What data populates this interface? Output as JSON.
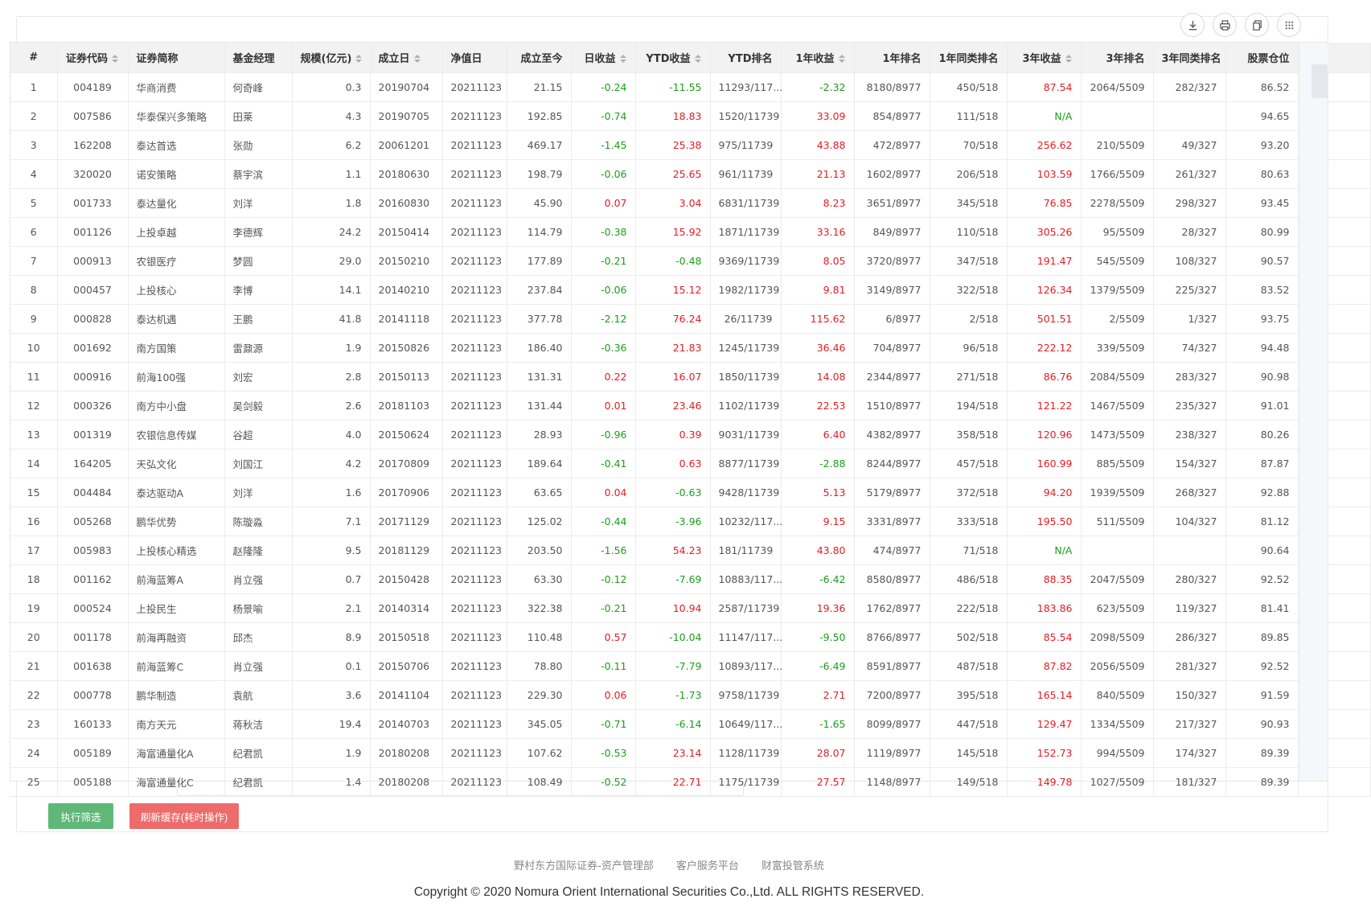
{
  "toolbar": {
    "icons": [
      "download-icon",
      "print-icon",
      "copy-icon",
      "grid-icon"
    ]
  },
  "colors": {
    "positive": "#e51c23",
    "negative": "#1b9e1b",
    "run_button": "#5fb878",
    "refresh_button": "#ee6b6b",
    "header_bg": "#f2f2f2"
  },
  "table": {
    "columns": [
      {
        "key": "no",
        "label": "#",
        "sortable": false,
        "align": "c"
      },
      {
        "key": "code",
        "label": "证券代码",
        "sortable": true,
        "align": "c"
      },
      {
        "key": "name",
        "label": "证券简称",
        "sortable": false,
        "align": "l"
      },
      {
        "key": "manager",
        "label": "基金经理",
        "sortable": false,
        "align": "l"
      },
      {
        "key": "size",
        "label": "规模(亿元)",
        "sortable": true,
        "align": "r"
      },
      {
        "key": "inception",
        "label": "成立日",
        "sortable": true,
        "align": "l"
      },
      {
        "key": "nav_date",
        "label": "净值日",
        "sortable": false,
        "align": "l"
      },
      {
        "key": "since_inception",
        "label": "成立至今",
        "sortable": false,
        "align": "r"
      },
      {
        "key": "daily",
        "label": "日收益",
        "sortable": true,
        "align": "r",
        "signed": true
      },
      {
        "key": "ytd",
        "label": "YTD收益",
        "sortable": true,
        "align": "r",
        "signed": true
      },
      {
        "key": "ytd_rank",
        "label": "YTD排名",
        "sortable": false,
        "align": "r"
      },
      {
        "key": "y1",
        "label": "1年收益",
        "sortable": true,
        "align": "r",
        "signed": true
      },
      {
        "key": "y1_rank",
        "label": "1年排名",
        "sortable": false,
        "align": "r"
      },
      {
        "key": "y1_peer",
        "label": "1年同类排名",
        "sortable": false,
        "align": "r"
      },
      {
        "key": "y3",
        "label": "3年收益",
        "sortable": true,
        "align": "r",
        "signed": true
      },
      {
        "key": "y3_rank",
        "label": "3年排名",
        "sortable": false,
        "align": "r"
      },
      {
        "key": "y3_peer",
        "label": "3年同类排名",
        "sortable": false,
        "align": "r"
      },
      {
        "key": "equity",
        "label": "股票仓位",
        "sortable": false,
        "align": "r"
      }
    ],
    "rows": [
      [
        "1",
        "004189",
        "华商消费",
        "何奇峰",
        "0.3",
        "20190704",
        "20211123",
        "21.15",
        "-0.24",
        "-11.55",
        "11293/117...",
        "-2.32",
        "8180/8977",
        "450/518",
        "87.54",
        "2064/5509",
        "282/327",
        "86.52"
      ],
      [
        "2",
        "007586",
        "华泰保兴多策略",
        "田莱",
        "4.3",
        "20190705",
        "20211123",
        "192.85",
        "-0.74",
        "18.83",
        "1520/11739",
        "33.09",
        "854/8977",
        "111/518",
        "N/A",
        "",
        "",
        "94.65"
      ],
      [
        "3",
        "162208",
        "泰达首选",
        "张勋",
        "6.2",
        "20061201",
        "20211123",
        "469.17",
        "-1.45",
        "25.38",
        "975/11739",
        "43.88",
        "472/8977",
        "70/518",
        "256.62",
        "210/5509",
        "49/327",
        "93.20"
      ],
      [
        "4",
        "320020",
        "诺安策略",
        "蔡宇滨",
        "1.1",
        "20180630",
        "20211123",
        "198.79",
        "-0.06",
        "25.65",
        "961/11739",
        "21.13",
        "1602/8977",
        "206/518",
        "103.59",
        "1766/5509",
        "261/327",
        "80.63"
      ],
      [
        "5",
        "001733",
        "泰达量化",
        "刘洋",
        "1.8",
        "20160830",
        "20211123",
        "45.90",
        "0.07",
        "3.04",
        "6831/11739",
        "8.23",
        "3651/8977",
        "345/518",
        "76.85",
        "2278/5509",
        "298/327",
        "93.45"
      ],
      [
        "6",
        "001126",
        "上投卓越",
        "李德辉",
        "24.2",
        "20150414",
        "20211123",
        "114.79",
        "-0.38",
        "15.92",
        "1871/11739",
        "33.16",
        "849/8977",
        "110/518",
        "305.26",
        "95/5509",
        "28/327",
        "80.99"
      ],
      [
        "7",
        "000913",
        "农银医疗",
        "梦圆",
        "29.0",
        "20150210",
        "20211123",
        "177.89",
        "-0.21",
        "-0.48",
        "9369/11739",
        "8.05",
        "3720/8977",
        "347/518",
        "191.47",
        "545/5509",
        "108/327",
        "90.57"
      ],
      [
        "8",
        "000457",
        "上投核心",
        "李博",
        "14.1",
        "20140210",
        "20211123",
        "237.84",
        "-0.06",
        "15.12",
        "1982/11739",
        "9.81",
        "3149/8977",
        "322/518",
        "126.34",
        "1379/5509",
        "225/327",
        "83.52"
      ],
      [
        "9",
        "000828",
        "泰达机遇",
        "王鹏",
        "41.8",
        "20141118",
        "20211123",
        "377.78",
        "-2.12",
        "76.24",
        "26/11739",
        "115.62",
        "6/8977",
        "2/518",
        "501.51",
        "2/5509",
        "1/327",
        "93.75"
      ],
      [
        "10",
        "001692",
        "南方国策",
        "雷鼐源",
        "1.9",
        "20150826",
        "20211123",
        "186.40",
        "-0.36",
        "21.83",
        "1245/11739",
        "36.46",
        "704/8977",
        "96/518",
        "222.12",
        "339/5509",
        "74/327",
        "94.48"
      ],
      [
        "11",
        "000916",
        "前海100强",
        "刘宏",
        "2.8",
        "20150113",
        "20211123",
        "131.31",
        "0.22",
        "16.07",
        "1850/11739",
        "14.08",
        "2344/8977",
        "271/518",
        "86.76",
        "2084/5509",
        "283/327",
        "90.98"
      ],
      [
        "12",
        "000326",
        "南方中小盘",
        "吴剑毅",
        "2.6",
        "20181103",
        "20211123",
        "131.44",
        "0.01",
        "23.46",
        "1102/11739",
        "22.53",
        "1510/8977",
        "194/518",
        "121.22",
        "1467/5509",
        "235/327",
        "91.01"
      ],
      [
        "13",
        "001319",
        "农银信息传媒",
        "谷超",
        "4.0",
        "20150624",
        "20211123",
        "28.93",
        "-0.96",
        "0.39",
        "9031/11739",
        "6.40",
        "4382/8977",
        "358/518",
        "120.96",
        "1473/5509",
        "238/327",
        "80.26"
      ],
      [
        "14",
        "164205",
        "天弘文化",
        "刘国江",
        "4.2",
        "20170809",
        "20211123",
        "189.64",
        "-0.41",
        "0.63",
        "8877/11739",
        "-2.88",
        "8244/8977",
        "457/518",
        "160.99",
        "885/5509",
        "154/327",
        "87.87"
      ],
      [
        "15",
        "004484",
        "泰达驱动A",
        "刘洋",
        "1.6",
        "20170906",
        "20211123",
        "63.65",
        "0.04",
        "-0.63",
        "9428/11739",
        "5.13",
        "5179/8977",
        "372/518",
        "94.20",
        "1939/5509",
        "268/327",
        "92.88"
      ],
      [
        "16",
        "005268",
        "鹏华优势",
        "陈璇淼",
        "7.1",
        "20171129",
        "20211123",
        "125.02",
        "-0.44",
        "-3.96",
        "10232/117...",
        "9.15",
        "3331/8977",
        "333/518",
        "195.50",
        "511/5509",
        "104/327",
        "81.12"
      ],
      [
        "17",
        "005983",
        "上投核心精选",
        "赵隆隆",
        "9.5",
        "20181129",
        "20211123",
        "203.50",
        "-1.56",
        "54.23",
        "181/11739",
        "43.80",
        "474/8977",
        "71/518",
        "N/A",
        "",
        "",
        "90.64"
      ],
      [
        "18",
        "001162",
        "前海蓝筹A",
        "肖立强",
        "0.7",
        "20150428",
        "20211123",
        "63.30",
        "-0.12",
        "-7.69",
        "10883/117...",
        "-6.42",
        "8580/8977",
        "486/518",
        "88.35",
        "2047/5509",
        "280/327",
        "92.52"
      ],
      [
        "19",
        "000524",
        "上投民生",
        "杨景喻",
        "2.1",
        "20140314",
        "20211123",
        "322.38",
        "-0.21",
        "10.94",
        "2587/11739",
        "19.36",
        "1762/8977",
        "222/518",
        "183.86",
        "623/5509",
        "119/327",
        "81.41"
      ],
      [
        "20",
        "001178",
        "前海再融资",
        "邱杰",
        "8.9",
        "20150518",
        "20211123",
        "110.48",
        "0.57",
        "-10.04",
        "11147/117...",
        "-9.50",
        "8766/8977",
        "502/518",
        "85.54",
        "2098/5509",
        "286/327",
        "89.85"
      ],
      [
        "21",
        "001638",
        "前海蓝筹C",
        "肖立强",
        "0.1",
        "20150706",
        "20211123",
        "78.80",
        "-0.11",
        "-7.79",
        "10893/117...",
        "-6.49",
        "8591/8977",
        "487/518",
        "87.82",
        "2056/5509",
        "281/327",
        "92.52"
      ],
      [
        "22",
        "000778",
        "鹏华制造",
        "袁航",
        "3.6",
        "20141104",
        "20211123",
        "229.30",
        "0.06",
        "-1.73",
        "9758/11739",
        "2.71",
        "7200/8977",
        "395/518",
        "165.14",
        "840/5509",
        "150/327",
        "91.59"
      ],
      [
        "23",
        "160133",
        "南方天元",
        "蒋秋洁",
        "19.4",
        "20140703",
        "20211123",
        "345.05",
        "-0.71",
        "-6.14",
        "10649/117...",
        "-1.65",
        "8099/8977",
        "447/518",
        "129.47",
        "1334/5509",
        "217/327",
        "90.93"
      ],
      [
        "24",
        "005189",
        "海富通量化A",
        "纪君凯",
        "1.9",
        "20180208",
        "20211123",
        "107.62",
        "-0.53",
        "23.14",
        "1128/11739",
        "28.07",
        "1119/8977",
        "145/518",
        "152.73",
        "994/5509",
        "174/327",
        "89.39"
      ],
      [
        "25",
        "005188",
        "海富通量化C",
        "纪君凯",
        "1.4",
        "20180208",
        "20211123",
        "108.49",
        "-0.52",
        "22.71",
        "1175/11739",
        "27.57",
        "1148/8977",
        "149/518",
        "149.78",
        "1027/5509",
        "181/327",
        "89.39"
      ]
    ]
  },
  "actions": {
    "run_label": "执行筛选",
    "refresh_label": "刷新缓存(耗时操作)"
  },
  "footer": {
    "links": [
      "野村东方国际证券-资产管理部",
      "客户服务平台",
      "财富投管系统"
    ],
    "copyright": "Copyright © 2020 Nomura Orient International Securities Co.,Ltd. ALL RIGHTS RESERVED."
  }
}
